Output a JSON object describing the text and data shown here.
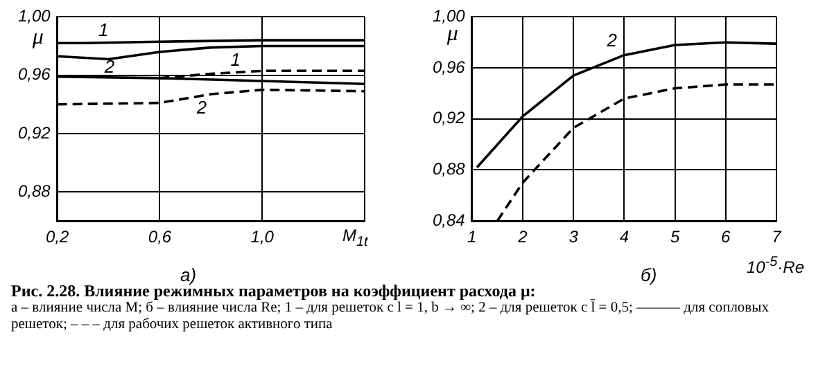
{
  "chart_data": [
    {
      "type": "line",
      "subtitle": "а)",
      "xlabel": "M$_{1t}$",
      "ylabel": "μ",
      "xlim": [
        0.2,
        1.4
      ],
      "xticks": [
        {
          "value": 0.2,
          "label": "0,2"
        },
        {
          "value": 0.6,
          "label": "0,6"
        },
        {
          "value": 1.0,
          "label": "1,0"
        },
        {
          "value": 1.4,
          "label": null
        }
      ],
      "ylim": [
        0.86,
        1.0
      ],
      "yticks": [
        {
          "value": 0.88,
          "label": "0,88"
        },
        {
          "value": 0.92,
          "label": "0,92"
        },
        {
          "value": 0.96,
          "label": "0,96"
        },
        {
          "value": 1.0,
          "label": "1,00"
        }
      ],
      "grid": true,
      "legend": false,
      "marker": "none",
      "series": [
        {
          "color": "#000000",
          "line_style": "solid",
          "x": [
            0.2,
            0.3,
            0.6,
            1.0,
            1.4
          ],
          "values": [
            0.982,
            0.982,
            0.983,
            0.984,
            0.984
          ]
        },
        {
          "color": "#000000",
          "line_style": "solid",
          "x": [
            0.2,
            0.4,
            0.6,
            0.8,
            1.0,
            1.4
          ],
          "values": [
            0.973,
            0.971,
            0.976,
            0.979,
            0.98,
            0.98
          ]
        },
        {
          "color": "#000000",
          "line_style": "solid",
          "x": [
            0.2,
            0.6,
            1.0,
            1.4
          ],
          "values": [
            0.959,
            0.958,
            0.956,
            0.954
          ]
        },
        {
          "color": "#000000",
          "line_style": "dashed",
          "x": [
            0.6,
            0.8,
            1.0,
            1.4
          ],
          "values": [
            0.958,
            0.961,
            0.963,
            0.963
          ]
        },
        {
          "color": "#000000",
          "line_style": "dashed",
          "x": [
            0.2,
            0.6,
            0.8,
            1.0,
            1.4
          ],
          "values": [
            0.94,
            0.941,
            0.947,
            0.95,
            0.949
          ]
        }
      ],
      "annotations": [
        "1",
        "2",
        "1",
        "2",
        "Рис. 2.28. Влияние режимных параметров на коэффициент расхода μ:",
        "а – влияние числа М; б – влияние числа Re; 1 – для решеток с l = 1, b → ∞; 2 – для решеток с l̄ = 0,5; ——— для сопловых решеток; – – – для рабочих решеток активного типа"
      ]
    },
    {
      "type": "line",
      "subtitle": "б)",
      "xlabel": "10$^{-5}$·Re",
      "ylabel": "μ",
      "xlim": [
        1,
        7
      ],
      "xticks": [
        1,
        2,
        3,
        4,
        5,
        6,
        7
      ],
      "ylim": [
        0.84,
        1.0
      ],
      "yticks": [
        {
          "value": 0.84,
          "label": "0,84"
        },
        {
          "value": 0.88,
          "label": "0,88"
        },
        {
          "value": 0.92,
          "label": "0,92"
        },
        {
          "value": 0.96,
          "label": "0,96"
        },
        {
          "value": 1.0,
          "label": "1,00"
        }
      ],
      "grid": true,
      "legend": false,
      "marker": "none",
      "series": [
        {
          "color": "#000000",
          "line_style": "solid",
          "x": [
            1.1,
            2,
            3,
            4,
            5,
            6,
            7
          ],
          "values": [
            0.882,
            0.922,
            0.954,
            0.97,
            0.978,
            0.98,
            0.979
          ]
        },
        {
          "color": "#000000",
          "line_style": "dashed",
          "x": [
            1.5,
            2,
            3,
            4,
            5,
            6,
            7
          ],
          "values": [
            0.84,
            0.87,
            0.913,
            0.936,
            0.944,
            0.947,
            0.947
          ]
        }
      ],
      "annotations": [
        "2"
      ]
    }
  ]
}
